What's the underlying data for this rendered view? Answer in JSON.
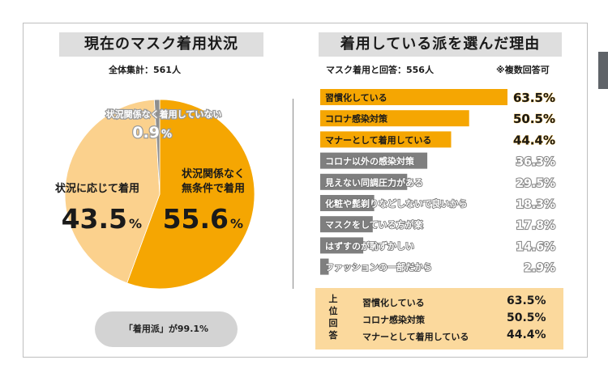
{
  "left_panel": {
    "title": "現在のマスク着用状況",
    "total_label": "全体集計：561人",
    "slices": [
      {
        "label_lines": [
          "状況関係なく",
          "無条件で着用"
        ],
        "value": 55.6,
        "display": "55.6",
        "unit": "%",
        "color": "#f5a602"
      },
      {
        "label_lines": [
          "状況に応じて着用"
        ],
        "value": 43.5,
        "display": "43.5",
        "unit": "%",
        "color": "#fbd18d"
      },
      {
        "label_lines": [
          "状況関係なく着用していない"
        ],
        "value": 0.9,
        "display": "0.9",
        "unit": "%",
        "color": "#8f8f8f"
      }
    ],
    "pill_text": "「着用派」が99.1%"
  },
  "right_panel": {
    "title": "着用している派を選んだ理由",
    "respondents_label": "マスク着用と回答：556人",
    "note": "※複数回答可",
    "summary": {
      "heading_chars": [
        "上",
        "位",
        "回",
        "答"
      ],
      "items": [
        {
          "label": "習慣化している",
          "value": "63.5%"
        },
        {
          "label": "コロナ感染対策",
          "value": "50.5%"
        },
        {
          "label": "マナーとして着用している",
          "value": "44.4%"
        }
      ]
    }
  },
  "colors": {
    "accent": "#f5a602",
    "accent_light": "#fbd18d",
    "gray_bar": "#7f7f7f",
    "summary_bg": "#fbd99d"
  },
  "chart_data": [
    {
      "type": "pie",
      "title": "現在のマスク着用状況",
      "categories": [
        "状況関係なく無条件で着用",
        "状況に応じて着用",
        "状況関係なく着用していない"
      ],
      "values": [
        55.6,
        43.5,
        0.9
      ]
    },
    {
      "type": "bar",
      "orientation": "horizontal",
      "title": "着用している派を選んだ理由",
      "categories": [
        "習慣化している",
        "コロナ感染対策",
        "マナーとして着用している",
        "コロナ以外の感染対策",
        "見えない同調圧力がある",
        "化粧や髭剃りなどしないで良いから",
        "マスクをしている方が楽",
        "はずすのが恥ずかしい",
        "ファッションの一部だから"
      ],
      "values": [
        63.5,
        50.5,
        44.4,
        36.3,
        29.5,
        18.3,
        17.8,
        14.6,
        2.9
      ],
      "value_labels": [
        "63.5%",
        "50.5%",
        "44.4%",
        "36.3%",
        "29.5%",
        "18.3%",
        "17.8%",
        "14.6%",
        "2.9%"
      ],
      "highlight_top": 3
    }
  ]
}
